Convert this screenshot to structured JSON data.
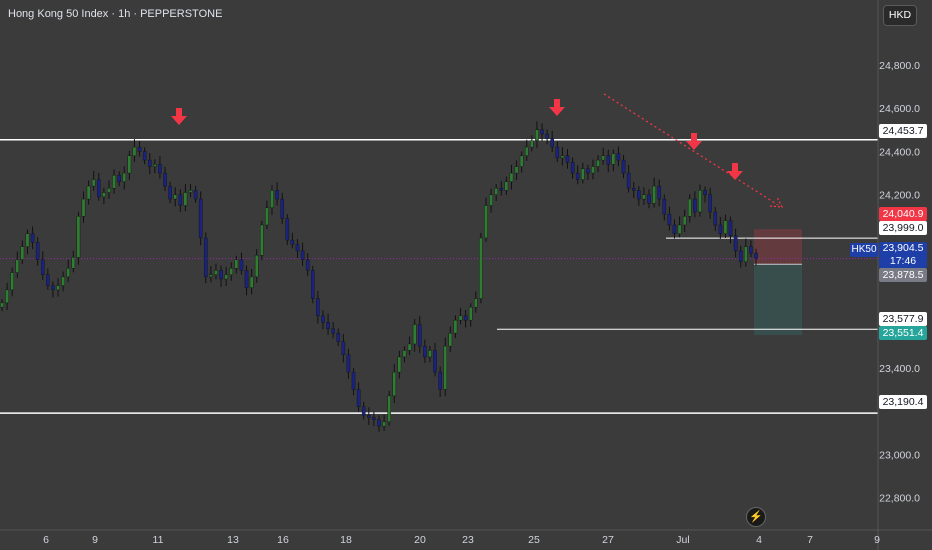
{
  "header": {
    "title": "Hong Kong 50 Index · 1h · PEPPERSTONE",
    "currency": "HKD"
  },
  "symbol_tag": "HK50",
  "last_price": {
    "value": "23,904.5",
    "countdown": "17:46"
  },
  "colors": {
    "background": "#3b3b3b",
    "bull_candle": "#2e7d32",
    "bear_candle": "#1a237e",
    "level_line": "#ffffff",
    "arrow": "#f23645",
    "stop_zone": "#f23645",
    "target_zone": "#26a69a",
    "last_price_line": "#9c27b0"
  },
  "icons": {
    "replay": "lightning-icon",
    "marker": "down-arrow-icon"
  },
  "chart_data": {
    "type": "candlestick",
    "title": "Hong Kong 50 Index",
    "timeframe": "1h",
    "source": "PEPPERSTONE",
    "ylim": [
      22650,
      25100
    ],
    "y_ticks": [
      "24,800.0",
      "24,600.0",
      "24,400.0",
      "24,200.0",
      "23,400.0",
      "23,000.0",
      "22,800.0"
    ],
    "x_ticks": [
      "6",
      "9",
      "11",
      "13",
      "16",
      "18",
      "20",
      "23",
      "25",
      "27",
      "Jul",
      "4",
      "7",
      "9"
    ],
    "horizontal_levels": [
      {
        "label": "24,453.7",
        "value": 24453.7,
        "style": "bold"
      },
      {
        "label": "23,999.0",
        "value": 23999.0,
        "style": "thin"
      },
      {
        "label": "23,577.9",
        "value": 23577.9,
        "style": "thin"
      },
      {
        "label": "23,190.4",
        "value": 23190.4,
        "style": "bold"
      }
    ],
    "position": {
      "stop_label": "24,040.9",
      "stop": 24040.9,
      "entry_label": "23,878.5",
      "entry": 23878.5,
      "target_label": "23,551.4",
      "target": 23551.4
    },
    "close_path": [
      23700,
      23760,
      23840,
      23900,
      23960,
      24020,
      23980,
      23900,
      23830,
      23780,
      23760,
      23780,
      23820,
      23860,
      23910,
      24100,
      24180,
      24240,
      24270,
      24190,
      24210,
      24230,
      24290,
      24260,
      24300,
      24380,
      24420,
      24400,
      24360,
      24330,
      24340,
      24300,
      24240,
      24180,
      24200,
      24150,
      24210,
      24220,
      24180,
      24000,
      23820,
      23830,
      23850,
      23810,
      23830,
      23860,
      23900,
      23850,
      23770,
      23820,
      23920,
      24060,
      24140,
      24220,
      24180,
      24090,
      23990,
      23970,
      23940,
      23900,
      23850,
      23720,
      23640,
      23610,
      23580,
      23560,
      23520,
      23460,
      23380,
      23300,
      23220,
      23180,
      23170,
      23160,
      23130,
      23150,
      23270,
      23380,
      23450,
      23480,
      23510,
      23600,
      23500,
      23450,
      23480,
      23380,
      23300,
      23500,
      23560,
      23620,
      23640,
      23620,
      23680,
      23720,
      24000,
      24150,
      24200,
      24230,
      24220,
      24260,
      24300,
      24330,
      24380,
      24420,
      24450,
      24500,
      24480,
      24460,
      24420,
      24370,
      24380,
      24350,
      24300,
      24270,
      24320,
      24300,
      24330,
      24360,
      24380,
      24340,
      24390,
      24360,
      24300,
      24230,
      24220,
      24180,
      24200,
      24160,
      24240,
      24180,
      24110,
      24060,
      24020,
      24060,
      24100,
      24180,
      24120,
      24220,
      24200,
      24120,
      24060,
      24020,
      24080,
      24010,
      23940,
      23890,
      23960,
      23930,
      23905
    ],
    "annotations": [
      {
        "type": "arrow-down",
        "at": "11"
      },
      {
        "type": "arrow-down",
        "at": "25"
      },
      {
        "type": "arrow-down",
        "at": "Jul"
      },
      {
        "type": "arrow-down",
        "at": "Jul"
      },
      {
        "type": "dotted-trendline",
        "direction": "down"
      }
    ]
  }
}
